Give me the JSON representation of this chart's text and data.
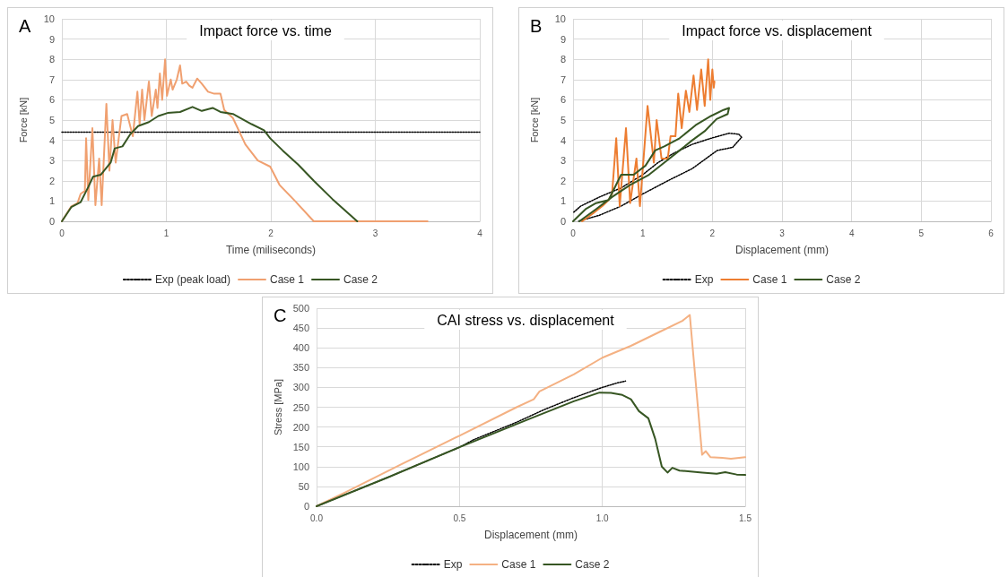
{
  "chart_data": [
    {
      "type": "line",
      "title": "Impact force vs. time",
      "xlabel": "Time (miliseconds)",
      "ylabel": "Force [kN]",
      "annotations": [
        "A"
      ],
      "xlim": [
        0,
        4
      ],
      "xticks": [
        0,
        1,
        2,
        3,
        4
      ],
      "ylim": [
        0,
        10
      ],
      "yticks": [
        0,
        1,
        2,
        3,
        4,
        5,
        6,
        7,
        8,
        9,
        10
      ],
      "grid": true,
      "legend": "bottom",
      "marker": "none",
      "series": [
        {
          "name": "Exp (peak load)",
          "color": "#000000",
          "line_style": "dotted",
          "x": [
            0,
            4
          ],
          "values": [
            4.4,
            4.4
          ]
        },
        {
          "name": "Case 1",
          "color": "#f0a070",
          "line_style": "solid",
          "x": [
            0,
            0.09,
            0.15,
            0.18,
            0.22,
            0.232,
            0.253,
            0.292,
            0.321,
            0.357,
            0.381,
            0.426,
            0.455,
            0.485,
            0.515,
            0.571,
            0.625,
            0.679,
            0.723,
            0.744,
            0.768,
            0.79,
            0.833,
            0.86,
            0.899,
            0.915,
            0.938,
            0.96,
            0.988,
            1.006,
            1.042,
            1.06,
            1.1,
            1.131,
            1.152,
            1.19,
            1.22,
            1.25,
            1.295,
            1.339,
            1.399,
            1.458,
            1.518,
            1.554,
            1.637,
            1.756,
            1.875,
            1.994,
            2.083,
            2.232,
            2.411,
            3.5
          ],
          "values": [
            0,
            0.74,
            0.9,
            1.36,
            1.5,
            4.1,
            1.05,
            4.6,
            0.8,
            3.1,
            0.8,
            5.8,
            2.5,
            5.0,
            2.9,
            5.2,
            5.3,
            4.2,
            6.4,
            4.8,
            6.5,
            5.0,
            6.9,
            5.2,
            6.5,
            5.6,
            7.3,
            6.0,
            8.0,
            6.2,
            7.0,
            6.5,
            7.0,
            7.7,
            6.8,
            6.9,
            6.7,
            6.6,
            7.05,
            6.8,
            6.4,
            6.3,
            6.3,
            5.5,
            5.1,
            3.8,
            3.0,
            2.7,
            1.8,
            1.0,
            0,
            0
          ]
        },
        {
          "name": "Case 2",
          "color": "#375623",
          "line_style": "solid",
          "x": [
            0,
            0.09,
            0.18,
            0.253,
            0.298,
            0.372,
            0.467,
            0.506,
            0.58,
            0.655,
            0.729,
            0.833,
            0.923,
            1.012,
            1.131,
            1.25,
            1.339,
            1.443,
            1.518,
            1.637,
            1.815,
            1.935,
            1.994,
            2.113,
            2.262,
            2.411,
            2.589,
            2.827
          ],
          "values": [
            0,
            0.7,
            0.95,
            1.7,
            2.2,
            2.3,
            2.9,
            3.6,
            3.7,
            4.3,
            4.7,
            4.9,
            5.2,
            5.35,
            5.4,
            5.65,
            5.45,
            5.6,
            5.4,
            5.3,
            4.8,
            4.5,
            4.1,
            3.5,
            2.8,
            2.0,
            1.1,
            0
          ]
        }
      ]
    },
    {
      "type": "line",
      "title": "Impact force vs. displacement",
      "xlabel": "Displacement (mm)",
      "ylabel": "Force [kN]",
      "annotations": [
        "B"
      ],
      "xlim": [
        0,
        6
      ],
      "xticks": [
        0,
        1,
        2,
        3,
        4,
        5,
        6
      ],
      "ylim": [
        0,
        10
      ],
      "yticks": [
        0,
        1,
        2,
        3,
        4,
        5,
        6,
        7,
        8,
        9,
        10
      ],
      "grid": true,
      "legend": "bottom",
      "marker": "none",
      "series": [
        {
          "name": "Exp",
          "color": "#000000",
          "line_style": "dotted",
          "x": [
            0.01,
            0.11,
            0.38,
            0.69,
            1.0,
            1.22,
            1.44,
            1.71,
            1.98,
            2.24,
            2.38,
            2.42,
            2.29,
            2.07,
            1.71,
            1.36,
            1.0,
            0.69,
            0.38,
            0.07
          ],
          "values": [
            0.45,
            0.75,
            1.2,
            1.65,
            2.3,
            2.9,
            3.35,
            3.8,
            4.1,
            4.35,
            4.3,
            4.15,
            3.65,
            3.5,
            2.6,
            2.0,
            1.35,
            0.75,
            0.3,
            0
          ]
        },
        {
          "name": "Case 1",
          "color": "#ed7d31",
          "line_style": "solid",
          "x": [
            0.13,
            0.29,
            0.42,
            0.51,
            0.56,
            0.62,
            0.67,
            0.76,
            0.82,
            0.91,
            0.96,
            1.07,
            1.16,
            1.2,
            1.27,
            1.36,
            1.4,
            1.47,
            1.51,
            1.56,
            1.62,
            1.67,
            1.73,
            1.78,
            1.84,
            1.89,
            1.94,
            1.97,
            2.0,
            2.02,
            2.03
          ],
          "values": [
            0,
            0.4,
            0.75,
            1.05,
            1.35,
            4.1,
            0.75,
            4.6,
            0.9,
            3.1,
            0.75,
            5.7,
            2.9,
            5.0,
            3.1,
            3.1,
            4.2,
            4.2,
            6.3,
            4.6,
            6.45,
            5.4,
            7.2,
            5.5,
            7.5,
            5.7,
            8.0,
            6.0,
            7.5,
            6.6,
            6.9
          ]
        },
        {
          "name": "Case 2",
          "color": "#375623",
          "line_style": "solid",
          "x": [
            0,
            0.18,
            0.33,
            0.51,
            0.69,
            0.87,
            1.04,
            1.18,
            1.31,
            1.53,
            1.76,
            1.98,
            2.16,
            2.24,
            2.22,
            2.06,
            1.89,
            1.71,
            1.53,
            1.31,
            1.09,
            0.82,
            0.56,
            0.33,
            0.09
          ],
          "values": [
            0,
            0.6,
            0.9,
            1.05,
            2.3,
            2.3,
            2.75,
            3.5,
            3.7,
            4.1,
            4.75,
            5.2,
            5.5,
            5.6,
            5.3,
            5.05,
            4.45,
            4.0,
            3.5,
            2.9,
            2.3,
            1.8,
            1.2,
            0.6,
            0
          ]
        }
      ]
    },
    {
      "type": "line",
      "title": "CAI stress vs. displacement",
      "xlabel": "Displacement (mm)",
      "ylabel": "Stress [MPa]",
      "annotations": [
        "C"
      ],
      "xlim": [
        0,
        1.5
      ],
      "xticks": [
        {
          "value": 0,
          "label": "0.0"
        },
        {
          "value": 0.5,
          "label": "0.5"
        },
        {
          "value": 1,
          "label": "1.0"
        },
        {
          "value": 1.5,
          "label": "1.5"
        }
      ],
      "ylim": [
        0,
        500
      ],
      "yticks": [
        0,
        50,
        100,
        150,
        200,
        250,
        300,
        350,
        400,
        450,
        500
      ],
      "grid": true,
      "legend": "bottom",
      "marker": "none",
      "series": [
        {
          "name": "Exp",
          "color": "#000000",
          "line_style": "dotted",
          "x": [
            0,
            0.25,
            0.5,
            0.55,
            0.7,
            0.8,
            0.9,
            1.0,
            1.05,
            1.081
          ],
          "values": [
            0,
            73,
            149,
            168,
            212,
            245,
            274,
            300,
            311,
            316
          ]
        },
        {
          "name": "Case 1",
          "color": "#f4b183",
          "line_style": "solid",
          "x": [
            0,
            0.1,
            0.3,
            0.5,
            0.7,
            0.76,
            0.78,
            0.9,
            1.0,
            1.1,
            1.2,
            1.28,
            1.306,
            1.349,
            1.362,
            1.378,
            1.42,
            1.45,
            1.5
          ],
          "values": [
            0,
            35,
            107,
            178,
            250,
            270,
            290,
            333,
            375,
            405,
            440,
            468,
            483,
            130,
            139,
            124,
            122,
            120,
            124
          ]
        },
        {
          "name": "Case 2",
          "color": "#375623",
          "line_style": "solid",
          "x": [
            0,
            0.25,
            0.5,
            0.75,
            0.9,
            0.99,
            1.03,
            1.07,
            1.1,
            1.128,
            1.161,
            1.185,
            1.208,
            1.228,
            1.245,
            1.27,
            1.35,
            1.4,
            1.43,
            1.47,
            1.5
          ],
          "values": [
            0,
            73,
            149,
            222,
            265,
            287,
            286,
            281,
            270,
            240,
            222,
            170,
            100,
            85,
            97,
            90,
            85,
            82,
            86,
            80,
            79
          ]
        }
      ]
    }
  ]
}
